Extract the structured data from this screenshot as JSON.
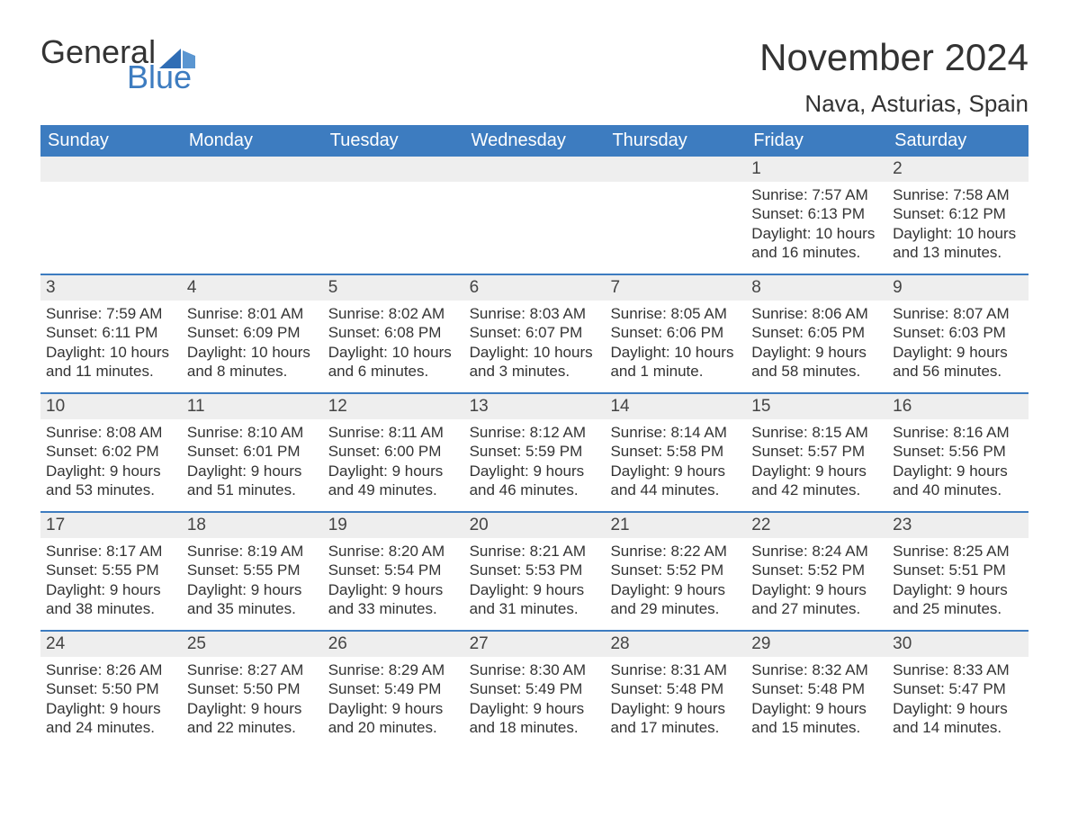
{
  "brand": {
    "word1": "General",
    "word2": "Blue",
    "color": "#3d7cc0"
  },
  "title": "November 2024",
  "location": "Nava, Asturias, Spain",
  "colors": {
    "header_bg": "#3d7cc0",
    "header_text": "#ffffff",
    "daynum_bg": "#eeeeee",
    "week_border": "#3d7cc0",
    "body_text": "#333333",
    "background": "#ffffff"
  },
  "font": {
    "family": "Arial",
    "title_size": 42,
    "location_size": 26,
    "header_size": 20,
    "cell_size": 17
  },
  "columns": [
    "Sunday",
    "Monday",
    "Tuesday",
    "Wednesday",
    "Thursday",
    "Friday",
    "Saturday"
  ],
  "weeks": [
    [
      {
        "n": "",
        "sr": "",
        "ss": "",
        "d1": "",
        "d2": ""
      },
      {
        "n": "",
        "sr": "",
        "ss": "",
        "d1": "",
        "d2": ""
      },
      {
        "n": "",
        "sr": "",
        "ss": "",
        "d1": "",
        "d2": ""
      },
      {
        "n": "",
        "sr": "",
        "ss": "",
        "d1": "",
        "d2": ""
      },
      {
        "n": "",
        "sr": "",
        "ss": "",
        "d1": "",
        "d2": ""
      },
      {
        "n": "1",
        "sr": "Sunrise: 7:57 AM",
        "ss": "Sunset: 6:13 PM",
        "d1": "Daylight: 10 hours",
        "d2": "and 16 minutes."
      },
      {
        "n": "2",
        "sr": "Sunrise: 7:58 AM",
        "ss": "Sunset: 6:12 PM",
        "d1": "Daylight: 10 hours",
        "d2": "and 13 minutes."
      }
    ],
    [
      {
        "n": "3",
        "sr": "Sunrise: 7:59 AM",
        "ss": "Sunset: 6:11 PM",
        "d1": "Daylight: 10 hours",
        "d2": "and 11 minutes."
      },
      {
        "n": "4",
        "sr": "Sunrise: 8:01 AM",
        "ss": "Sunset: 6:09 PM",
        "d1": "Daylight: 10 hours",
        "d2": "and 8 minutes."
      },
      {
        "n": "5",
        "sr": "Sunrise: 8:02 AM",
        "ss": "Sunset: 6:08 PM",
        "d1": "Daylight: 10 hours",
        "d2": "and 6 minutes."
      },
      {
        "n": "6",
        "sr": "Sunrise: 8:03 AM",
        "ss": "Sunset: 6:07 PM",
        "d1": "Daylight: 10 hours",
        "d2": "and 3 minutes."
      },
      {
        "n": "7",
        "sr": "Sunrise: 8:05 AM",
        "ss": "Sunset: 6:06 PM",
        "d1": "Daylight: 10 hours",
        "d2": "and 1 minute."
      },
      {
        "n": "8",
        "sr": "Sunrise: 8:06 AM",
        "ss": "Sunset: 6:05 PM",
        "d1": "Daylight: 9 hours",
        "d2": "and 58 minutes."
      },
      {
        "n": "9",
        "sr": "Sunrise: 8:07 AM",
        "ss": "Sunset: 6:03 PM",
        "d1": "Daylight: 9 hours",
        "d2": "and 56 minutes."
      }
    ],
    [
      {
        "n": "10",
        "sr": "Sunrise: 8:08 AM",
        "ss": "Sunset: 6:02 PM",
        "d1": "Daylight: 9 hours",
        "d2": "and 53 minutes."
      },
      {
        "n": "11",
        "sr": "Sunrise: 8:10 AM",
        "ss": "Sunset: 6:01 PM",
        "d1": "Daylight: 9 hours",
        "d2": "and 51 minutes."
      },
      {
        "n": "12",
        "sr": "Sunrise: 8:11 AM",
        "ss": "Sunset: 6:00 PM",
        "d1": "Daylight: 9 hours",
        "d2": "and 49 minutes."
      },
      {
        "n": "13",
        "sr": "Sunrise: 8:12 AM",
        "ss": "Sunset: 5:59 PM",
        "d1": "Daylight: 9 hours",
        "d2": "and 46 minutes."
      },
      {
        "n": "14",
        "sr": "Sunrise: 8:14 AM",
        "ss": "Sunset: 5:58 PM",
        "d1": "Daylight: 9 hours",
        "d2": "and 44 minutes."
      },
      {
        "n": "15",
        "sr": "Sunrise: 8:15 AM",
        "ss": "Sunset: 5:57 PM",
        "d1": "Daylight: 9 hours",
        "d2": "and 42 minutes."
      },
      {
        "n": "16",
        "sr": "Sunrise: 8:16 AM",
        "ss": "Sunset: 5:56 PM",
        "d1": "Daylight: 9 hours",
        "d2": "and 40 minutes."
      }
    ],
    [
      {
        "n": "17",
        "sr": "Sunrise: 8:17 AM",
        "ss": "Sunset: 5:55 PM",
        "d1": "Daylight: 9 hours",
        "d2": "and 38 minutes."
      },
      {
        "n": "18",
        "sr": "Sunrise: 8:19 AM",
        "ss": "Sunset: 5:55 PM",
        "d1": "Daylight: 9 hours",
        "d2": "and 35 minutes."
      },
      {
        "n": "19",
        "sr": "Sunrise: 8:20 AM",
        "ss": "Sunset: 5:54 PM",
        "d1": "Daylight: 9 hours",
        "d2": "and 33 minutes."
      },
      {
        "n": "20",
        "sr": "Sunrise: 8:21 AM",
        "ss": "Sunset: 5:53 PM",
        "d1": "Daylight: 9 hours",
        "d2": "and 31 minutes."
      },
      {
        "n": "21",
        "sr": "Sunrise: 8:22 AM",
        "ss": "Sunset: 5:52 PM",
        "d1": "Daylight: 9 hours",
        "d2": "and 29 minutes."
      },
      {
        "n": "22",
        "sr": "Sunrise: 8:24 AM",
        "ss": "Sunset: 5:52 PM",
        "d1": "Daylight: 9 hours",
        "d2": "and 27 minutes."
      },
      {
        "n": "23",
        "sr": "Sunrise: 8:25 AM",
        "ss": "Sunset: 5:51 PM",
        "d1": "Daylight: 9 hours",
        "d2": "and 25 minutes."
      }
    ],
    [
      {
        "n": "24",
        "sr": "Sunrise: 8:26 AM",
        "ss": "Sunset: 5:50 PM",
        "d1": "Daylight: 9 hours",
        "d2": "and 24 minutes."
      },
      {
        "n": "25",
        "sr": "Sunrise: 8:27 AM",
        "ss": "Sunset: 5:50 PM",
        "d1": "Daylight: 9 hours",
        "d2": "and 22 minutes."
      },
      {
        "n": "26",
        "sr": "Sunrise: 8:29 AM",
        "ss": "Sunset: 5:49 PM",
        "d1": "Daylight: 9 hours",
        "d2": "and 20 minutes."
      },
      {
        "n": "27",
        "sr": "Sunrise: 8:30 AM",
        "ss": "Sunset: 5:49 PM",
        "d1": "Daylight: 9 hours",
        "d2": "and 18 minutes."
      },
      {
        "n": "28",
        "sr": "Sunrise: 8:31 AM",
        "ss": "Sunset: 5:48 PM",
        "d1": "Daylight: 9 hours",
        "d2": "and 17 minutes."
      },
      {
        "n": "29",
        "sr": "Sunrise: 8:32 AM",
        "ss": "Sunset: 5:48 PM",
        "d1": "Daylight: 9 hours",
        "d2": "and 15 minutes."
      },
      {
        "n": "30",
        "sr": "Sunrise: 8:33 AM",
        "ss": "Sunset: 5:47 PM",
        "d1": "Daylight: 9 hours",
        "d2": "and 14 minutes."
      }
    ]
  ]
}
